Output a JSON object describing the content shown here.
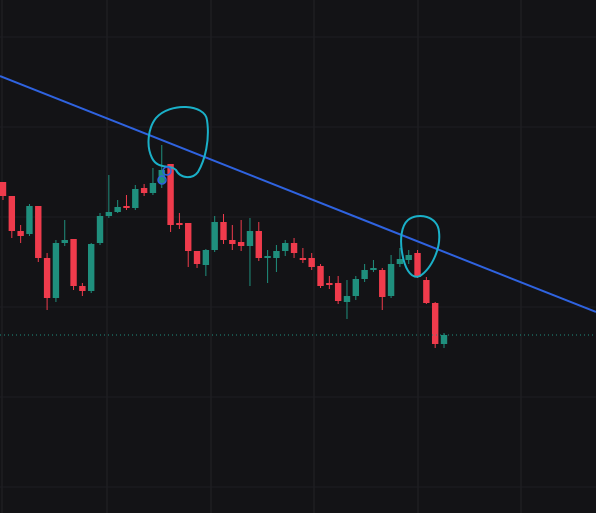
{
  "chart_data": {
    "type": "candlestick",
    "ylim": [
      0,
      513
    ],
    "grid": true,
    "up_color": "#1f8f7d",
    "down_color": "#ef3b4c",
    "series": [
      {
        "open": [
          331,
          317,
          282,
          279,
          307,
          255,
          215,
          270,
          274,
          227,
          222,
          270,
          297,
          301,
          307,
          305,
          325,
          320,
          330,
          349,
          290,
          290,
          262,
          248,
          263,
          291,
          273,
          271,
          267,
          282,
          255,
          255,
          262,
          270,
          255,
          255,
          247,
          230,
          230,
          211,
          217,
          234,
          243,
          243,
          217,
          249,
          253,
          260,
          233,
          210,
          169
        ],
        "high": [
          331,
          317,
          288,
          309,
          307,
          260,
          273,
          293,
          274,
          230,
          270,
          300,
          338,
          313,
          318,
          328,
          329,
          345,
          368,
          349,
          300,
          290,
          262,
          264,
          297,
          299,
          288,
          293,
          295,
          291,
          263,
          268,
          273,
          275,
          265,
          260,
          249,
          237,
          237,
          233,
          237,
          249,
          253,
          245,
          258,
          265,
          263,
          263,
          236,
          211,
          180
        ],
        "low": [
          313,
          275,
          270,
          277,
          251,
          203,
          211,
          267,
          223,
          217,
          220,
          268,
          295,
          300,
          303,
          303,
          317,
          318,
          325,
          281,
          284,
          246,
          245,
          237,
          261,
          269,
          263,
          262,
          227,
          252,
          230,
          241,
          257,
          255,
          250,
          243,
          225,
          224,
          209,
          194,
          213,
          231,
          241,
          203,
          215,
          246,
          249,
          235,
          209,
          165,
          165
        ],
        "close": [
          317,
          282,
          277,
          307,
          255,
          215,
          270,
          273,
          227,
          222,
          269,
          297,
          301,
          306,
          305,
          324,
          320,
          330,
          343,
          288,
          288,
          262,
          249,
          263,
          291,
          273,
          269,
          267,
          282,
          255,
          257,
          262,
          270,
          260,
          253,
          246,
          227,
          228,
          212,
          217,
          234,
          243,
          245,
          216,
          249,
          254,
          258,
          236,
          210,
          169,
          178
        ]
      }
    ]
  }
}
